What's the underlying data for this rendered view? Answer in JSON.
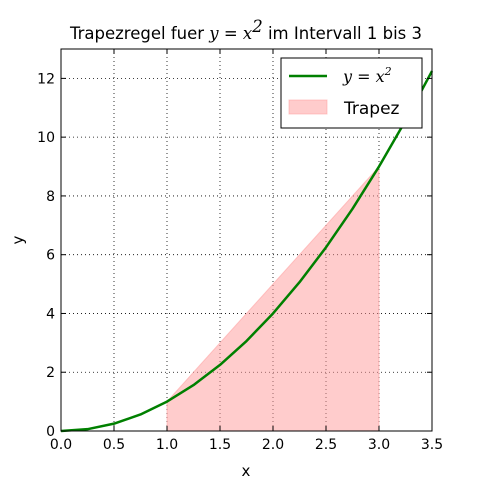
{
  "chart_data": {
    "type": "line",
    "title": {
      "text": "Trapezregel fuer ",
      "math": "y = x",
      "math_exp": "2",
      "suffix": " im Intervall 1 bis 3"
    },
    "xlabel": "x",
    "ylabel": "y",
    "xlim": [
      0,
      3.5
    ],
    "ylim": [
      0,
      13
    ],
    "xticks": [
      0.0,
      0.5,
      1.0,
      1.5,
      2.0,
      2.5,
      3.0,
      3.5
    ],
    "xtick_labels": [
      "0.0",
      "0.5",
      "1.0",
      "1.5",
      "2.0",
      "2.5",
      "3.0",
      "3.5"
    ],
    "yticks": [
      0,
      2,
      4,
      6,
      8,
      10,
      12
    ],
    "ytick_labels": [
      "0",
      "2",
      "4",
      "6",
      "8",
      "10",
      "12"
    ],
    "grid": true,
    "legend_position": "top-right",
    "series": [
      {
        "name": "y = x",
        "name_exp": "2",
        "kind": "line",
        "color": "#008000",
        "x": [
          0.0,
          0.25,
          0.5,
          0.75,
          1.0,
          1.25,
          1.5,
          1.75,
          2.0,
          2.25,
          2.5,
          2.75,
          3.0,
          3.25,
          3.5
        ],
        "y": [
          0.0,
          0.0625,
          0.25,
          0.5625,
          1.0,
          1.5625,
          2.25,
          3.0625,
          4.0,
          5.0625,
          6.25,
          7.5625,
          9.0,
          10.5625,
          12.25
        ]
      },
      {
        "name": "Trapez",
        "kind": "area",
        "color": "#ff9999",
        "x": [
          1.0,
          3.0
        ],
        "y": [
          1.0,
          9.0
        ]
      }
    ]
  }
}
